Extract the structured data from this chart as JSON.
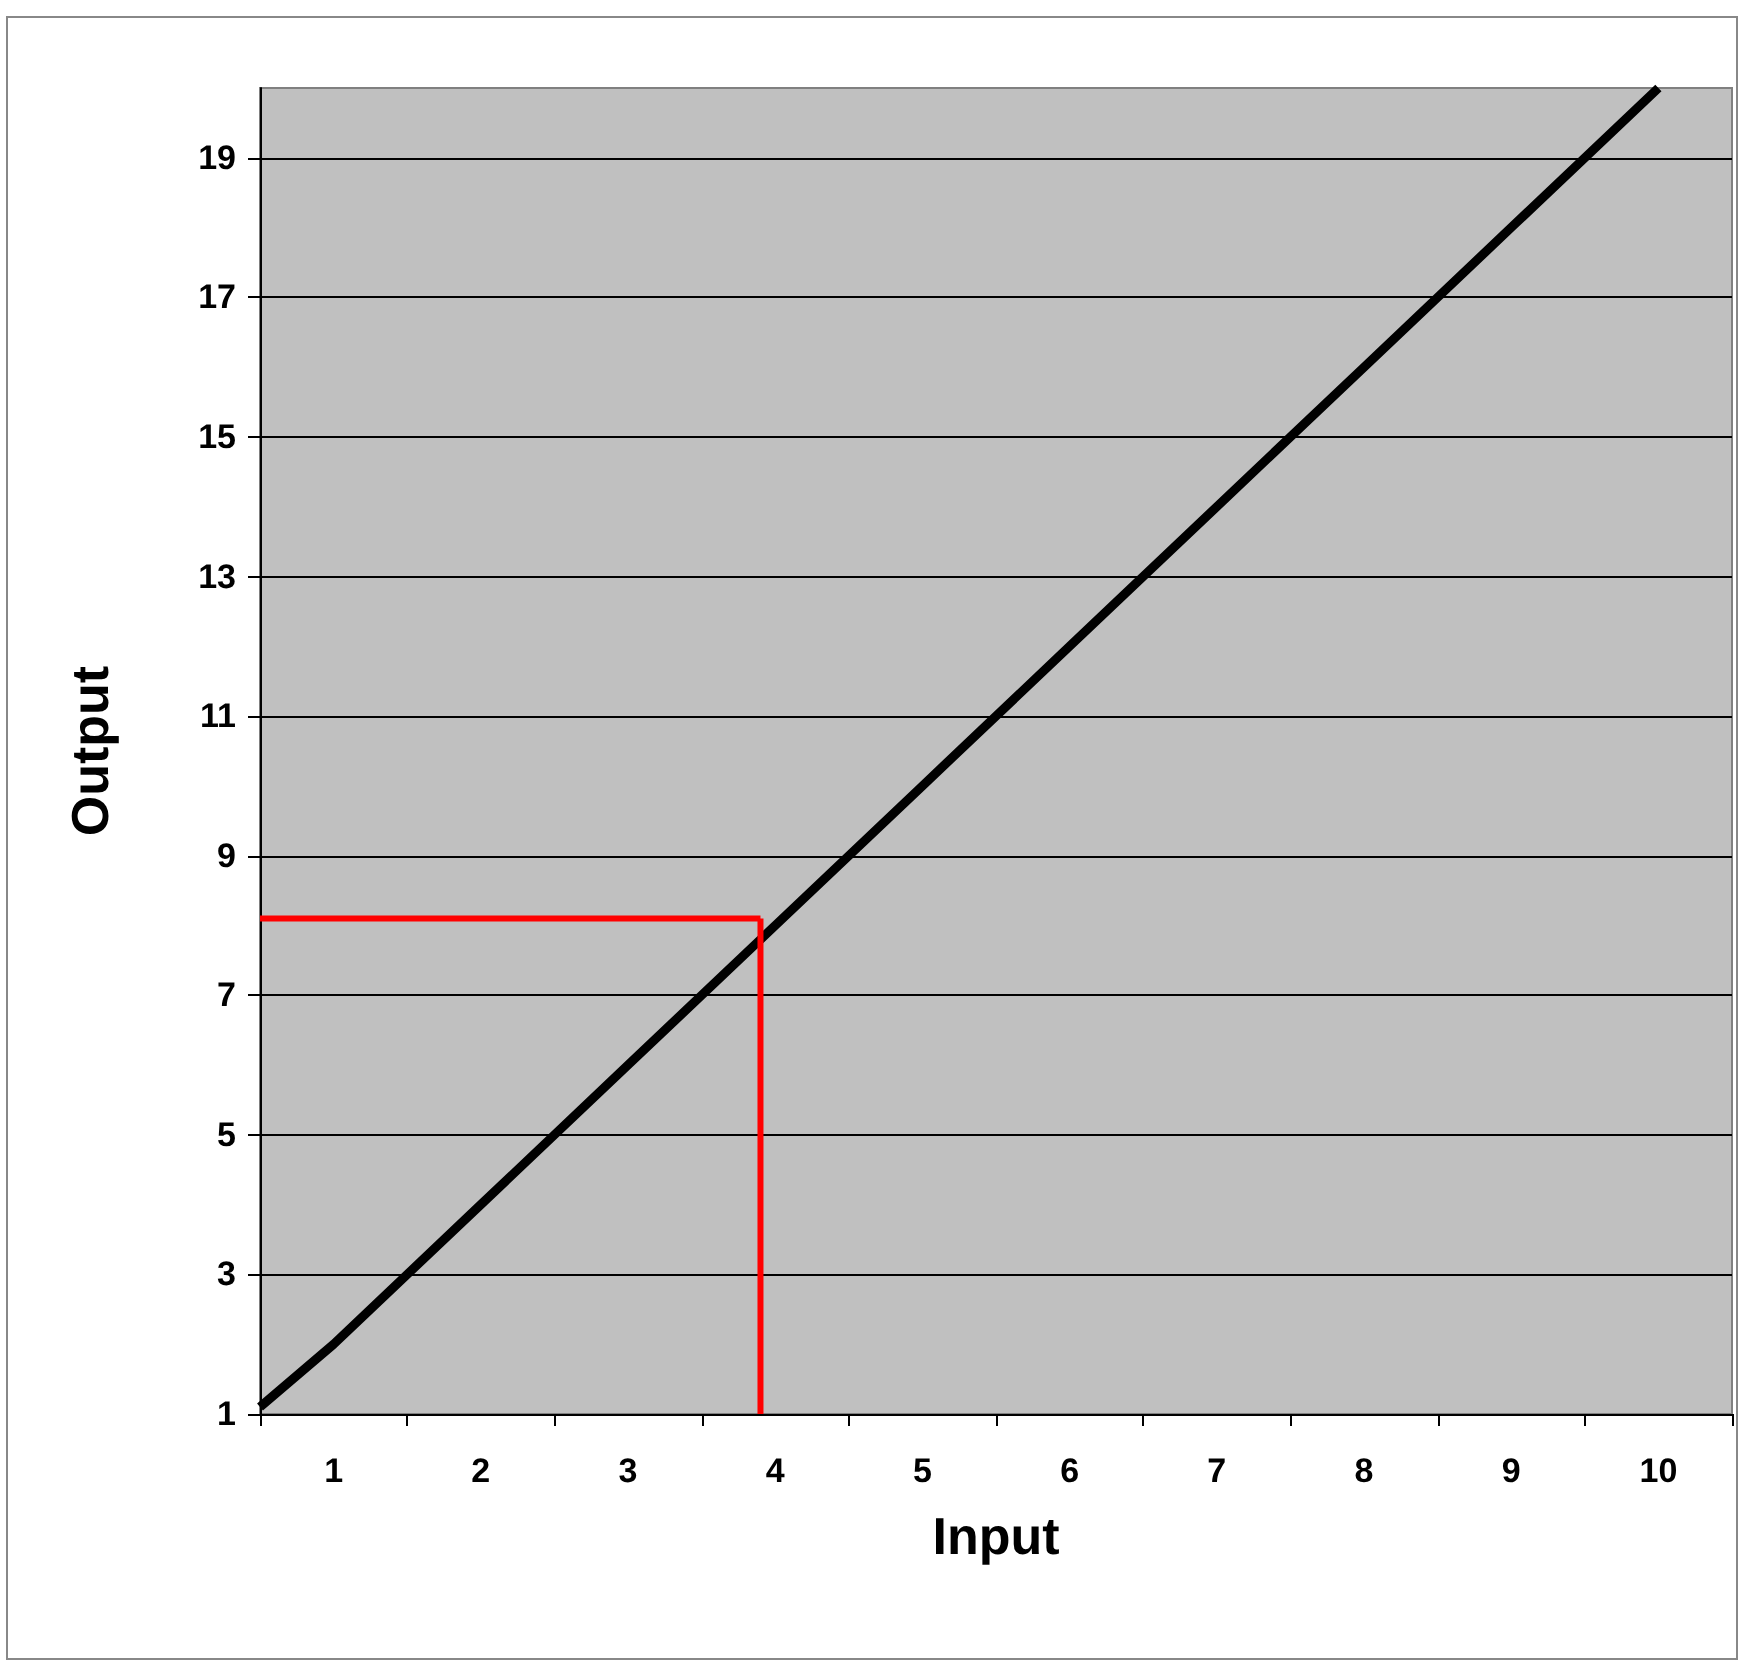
{
  "chart_data": {
    "type": "line",
    "xlabel": "Input",
    "ylabel": "Output",
    "x": [
      0.5,
      1,
      2,
      3,
      4,
      5,
      6,
      7,
      8,
      9,
      10
    ],
    "series": [
      {
        "color": "#000000",
        "values": [
          1.1,
          2,
          4,
          6,
          8,
          10,
          12,
          14,
          16,
          18,
          20
        ]
      }
    ],
    "ref_lines": [
      {
        "axis": "x",
        "value": 3.9,
        "color": "#ff0000"
      },
      {
        "axis": "y",
        "value": 8.1,
        "color": "#ff0000"
      }
    ],
    "xlim": [
      0.5,
      10.5
    ],
    "xticks": [
      {
        "value": 0.5,
        "label": null
      },
      1,
      {
        "value": 1.5,
        "label": null
      },
      2,
      {
        "value": 2.5,
        "label": null
      },
      3,
      {
        "value": 3.5,
        "label": null
      },
      4,
      {
        "value": 4.5,
        "label": null
      },
      5,
      {
        "value": 5.5,
        "label": null
      },
      6,
      {
        "value": 6.5,
        "label": null
      },
      7,
      {
        "value": 7.5,
        "label": null
      },
      8,
      {
        "value": 8.5,
        "label": null
      },
      9,
      {
        "value": 9.5,
        "label": null
      },
      10,
      {
        "value": 10.5,
        "label": null
      }
    ],
    "ylim": [
      1,
      20
    ],
    "yticks": [
      1,
      3,
      5,
      7,
      9,
      11,
      13,
      15,
      17,
      19
    ],
    "grid": "y",
    "marker": "none",
    "line_style": "solid"
  }
}
